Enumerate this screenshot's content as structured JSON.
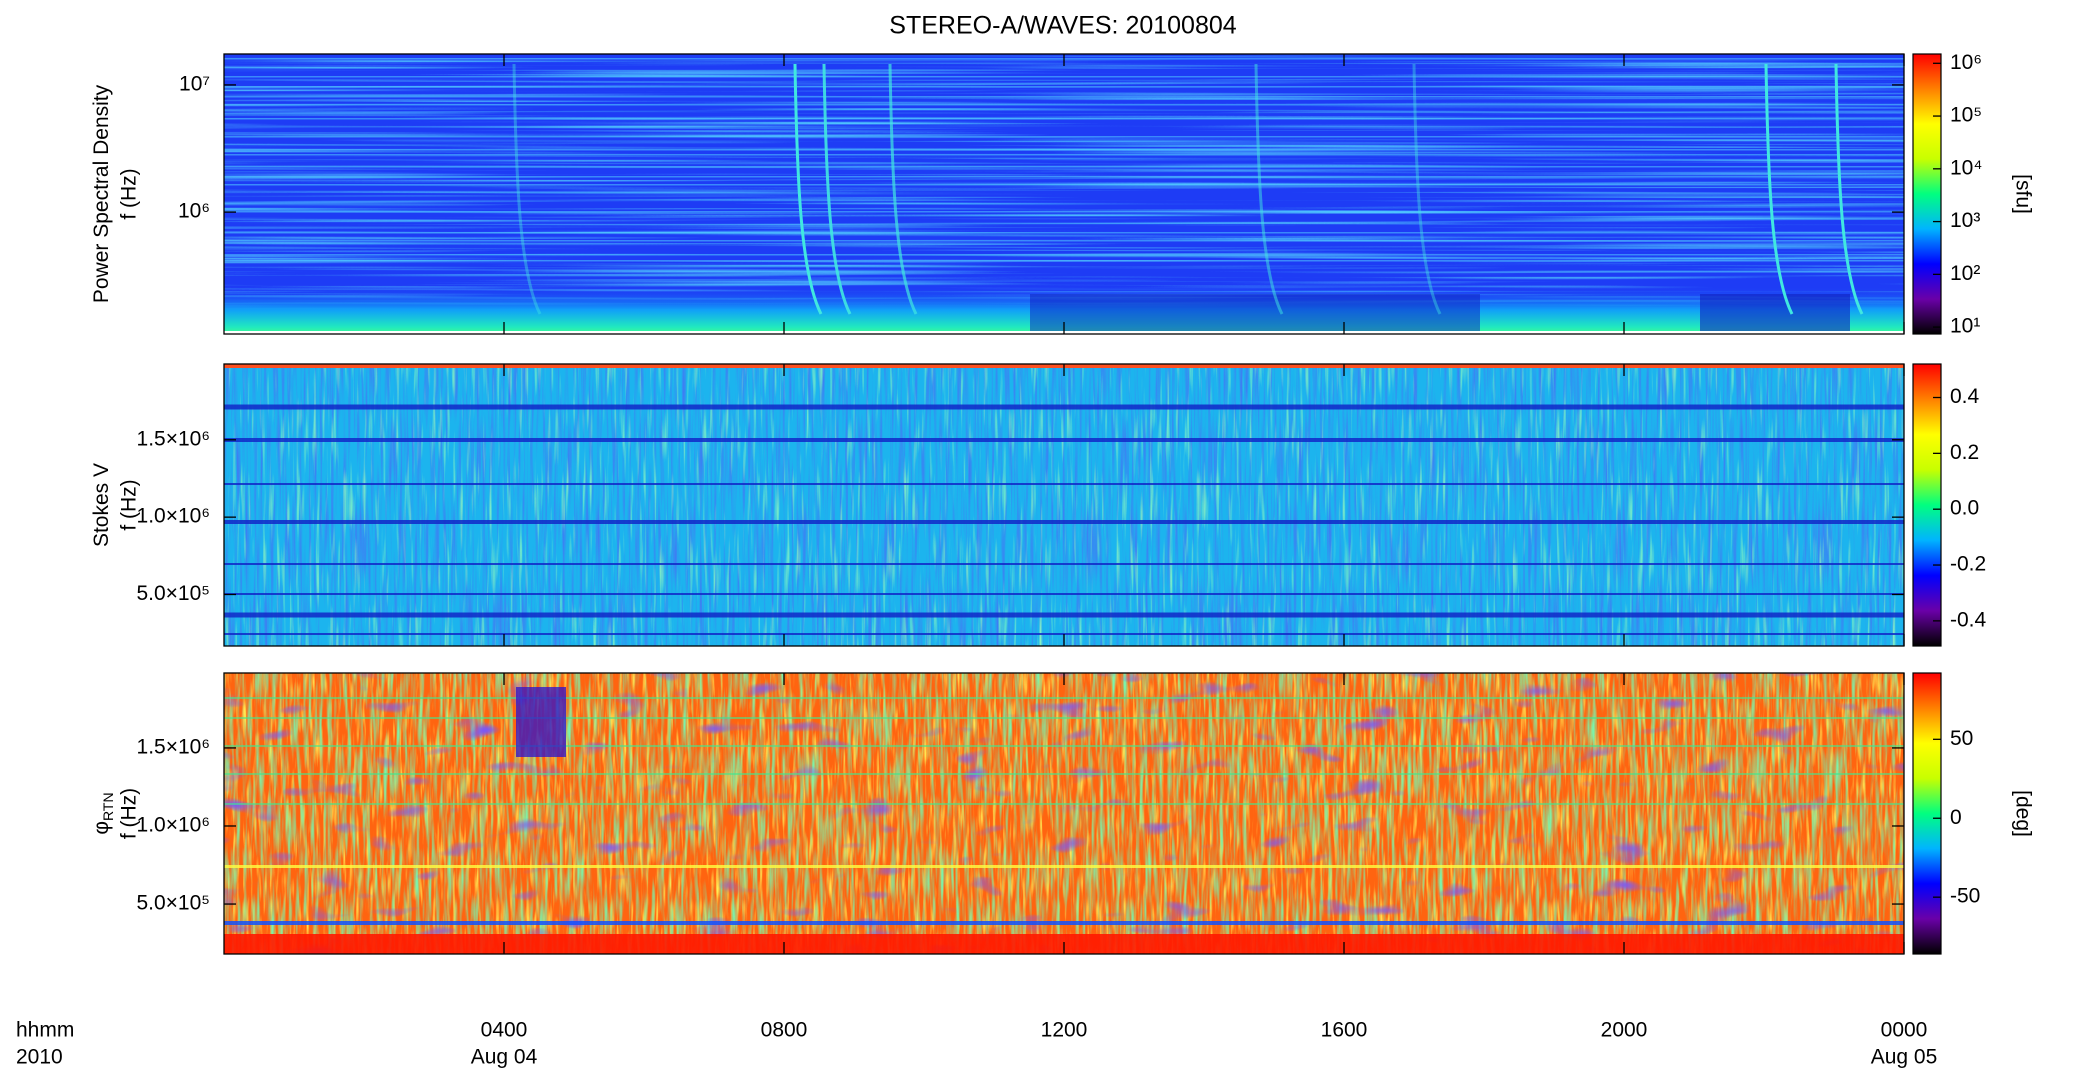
{
  "chart_data": [
    {
      "type": "spectrogram",
      "title": "STEREO-A/WAVES: 20100804",
      "ylabel": [
        "Power Spectral Density",
        "f (Hz)"
      ],
      "xlim": [
        0,
        24
      ],
      "yscale": "log",
      "ylim": [
        110000,
        17500000
      ],
      "yticks": [
        {
          "value": 1000000,
          "label": "10⁶"
        },
        {
          "value": 10000000,
          "label": "10⁷"
        }
      ],
      "colorbar": {
        "scale": "log",
        "clim": [
          7.4,
          1500000
        ],
        "label": "[sfu]",
        "ticks": [
          {
            "value": 10,
            "label": "10¹"
          },
          {
            "value": 100,
            "label": "10²"
          },
          {
            "value": 1000,
            "label": "10³"
          },
          {
            "value": 10000,
            "label": "10⁴"
          },
          {
            "value": 100000,
            "label": "10⁵"
          },
          {
            "value": 1000000,
            "label": "10⁶"
          }
        ]
      },
      "colormap": [
        "#000000",
        "#6a00a8",
        "#0000ff",
        "#00b4ff",
        "#00ff80",
        "#c8ff00",
        "#ffff00",
        "#ff8000",
        "#ff0000"
      ]
    },
    {
      "type": "spectrogram",
      "ylabel": [
        "Stokes V",
        "f (Hz)"
      ],
      "xlim": [
        0,
        24
      ],
      "yscale": "linear",
      "ylim": [
        167000,
        1990000
      ],
      "yticks": [
        {
          "value": 500000,
          "label": "5.0×10⁵"
        },
        {
          "value": 1000000,
          "label": "1.0×10⁶"
        },
        {
          "value": 1500000,
          "label": "1.5×10⁶"
        }
      ],
      "colorbar": {
        "scale": "linear",
        "clim": [
          -0.49,
          0.52
        ],
        "ticks": [
          -0.4,
          -0.2,
          {
            "value": 0,
            "label": "0.0"
          },
          0.2,
          0.4
        ]
      },
      "colormap": [
        "#000000",
        "#6a00a8",
        "#0000ff",
        "#00b4ff",
        "#00ff80",
        "#c8ff00",
        "#ffff00",
        "#ff8000",
        "#ff0000"
      ]
    },
    {
      "type": "spectrogram",
      "ylabel": [
        "φ",
        "f (Hz)"
      ],
      "ylabel_subscript": "RTN",
      "xlim": [
        0,
        24
      ],
      "yscale": "linear",
      "ylim": [
        180000,
        1980000
      ],
      "yticks": [
        {
          "value": 500000,
          "label": "5.0×10⁵"
        },
        {
          "value": 1000000,
          "label": "1.0×10⁶"
        },
        {
          "value": 1500000,
          "label": "1.5×10⁶"
        }
      ],
      "colorbar": {
        "scale": "linear",
        "clim": [
          -86,
          92
        ],
        "label": "[deg]",
        "ticks": [
          -50,
          0,
          50
        ]
      },
      "colormap": [
        "#000000",
        "#6a00a8",
        "#0000ff",
        "#00b4ff",
        "#00ff80",
        "#c8ff00",
        "#ffff00",
        "#ff8000",
        "#ff0000"
      ],
      "xticks": [
        {
          "value": 4,
          "label": "0400"
        },
        {
          "value": 8,
          "label": "0800"
        },
        {
          "value": 12,
          "label": "1200"
        },
        {
          "value": 16,
          "label": "1600"
        },
        {
          "value": 20,
          "label": "2000"
        },
        {
          "value": 24,
          "label": "0000"
        }
      ],
      "xtick_dates": [
        {
          "value": 4,
          "label": "Aug 04"
        },
        {
          "value": 24,
          "label": "Aug 05"
        }
      ],
      "xaxis_labels": [
        "hhmm",
        "2010"
      ]
    }
  ]
}
